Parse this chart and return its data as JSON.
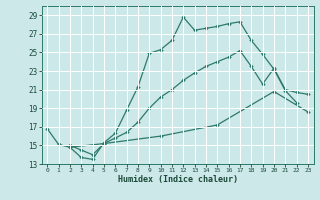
{
  "xlabel": "Humidex (Indice chaleur)",
  "bg_color": "#cce8e8",
  "grid_color": "#ffffff",
  "line_color": "#2d7a6a",
  "xlim": [
    -0.5,
    23.5
  ],
  "ylim": [
    13,
    30
  ],
  "xticks": [
    0,
    1,
    2,
    3,
    4,
    5,
    6,
    7,
    8,
    9,
    10,
    11,
    12,
    13,
    14,
    15,
    16,
    17,
    18,
    19,
    20,
    21,
    22,
    23
  ],
  "yticks": [
    13,
    15,
    17,
    19,
    21,
    23,
    25,
    27,
    29
  ],
  "curve1_x": [
    0,
    1,
    2,
    3,
    4,
    5,
    6,
    7,
    8,
    9,
    10,
    11,
    12,
    13,
    14,
    15,
    16,
    17,
    18,
    19,
    20,
    21,
    22
  ],
  "curve1_y": [
    16.8,
    15.1,
    14.8,
    13.7,
    13.5,
    15.3,
    16.3,
    18.8,
    21.3,
    24.9,
    25.3,
    26.3,
    28.8,
    27.4,
    27.6,
    27.8,
    28.1,
    28.3,
    26.3,
    24.8,
    23.2,
    20.9,
    19.6
  ],
  "curve2_x": [
    2,
    3,
    4,
    5,
    6,
    7,
    8,
    9,
    10,
    11,
    12,
    13,
    14,
    15,
    16,
    17,
    18,
    19,
    20,
    21,
    22,
    23
  ],
  "curve2_y": [
    15.0,
    14.5,
    14.0,
    15.2,
    15.8,
    16.4,
    17.5,
    19.0,
    20.2,
    21.0,
    22.0,
    22.8,
    23.5,
    24.0,
    24.5,
    25.2,
    23.5,
    21.6,
    23.3,
    21.0,
    20.7,
    20.5
  ],
  "curve3_x": [
    2,
    5,
    10,
    15,
    20,
    23
  ],
  "curve3_y": [
    14.8,
    15.2,
    16.0,
    17.2,
    20.8,
    18.6
  ]
}
